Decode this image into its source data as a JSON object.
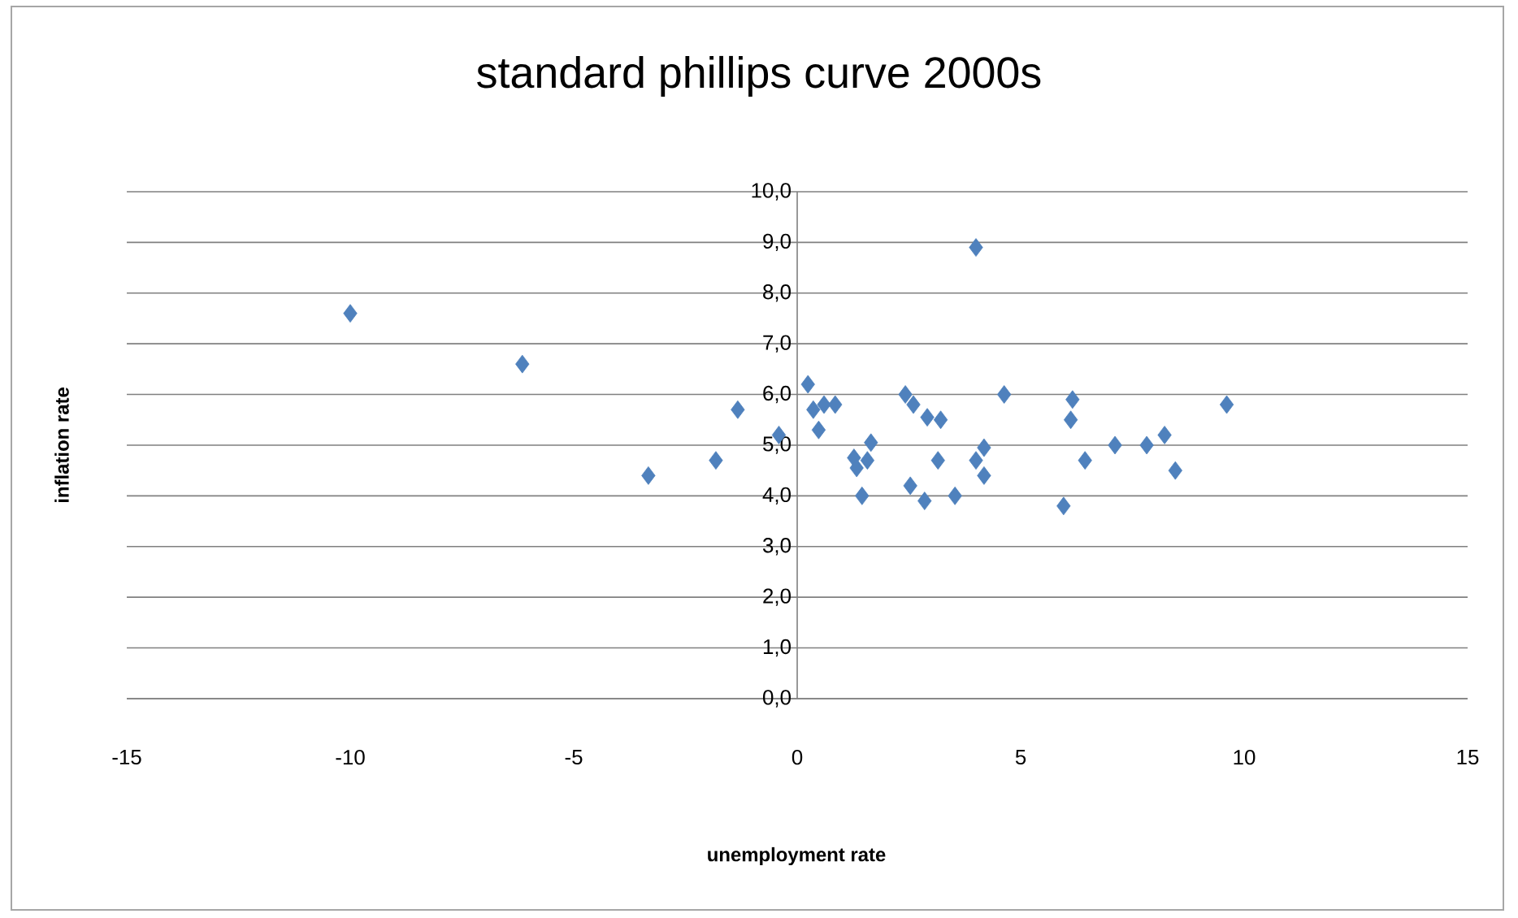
{
  "chart_data": {
    "type": "scatter",
    "title": "standard phillips curve 2000s",
    "xlabel": "unemployment rate",
    "ylabel": "inflation rate",
    "xlim": [
      -15,
      15
    ],
    "xticks": [
      -15,
      -10,
      -5,
      0,
      5,
      10,
      15
    ],
    "ylim": [
      0,
      10
    ],
    "yticks": [
      {
        "value": 0,
        "label": "0,0"
      },
      {
        "value": 1,
        "label": "1,0"
      },
      {
        "value": 2,
        "label": "2,0"
      },
      {
        "value": 3,
        "label": "3,0"
      },
      {
        "value": 4,
        "label": "4,0"
      },
      {
        "value": 5,
        "label": "5,0"
      },
      {
        "value": 6,
        "label": "6,0"
      },
      {
        "value": 7,
        "label": "7,0"
      },
      {
        "value": 8,
        "label": "8,0"
      },
      {
        "value": 9,
        "label": "9,0"
      },
      {
        "value": 10,
        "label": "10,0"
      }
    ],
    "grid": "y",
    "marker": "diamond",
    "series": [
      {
        "color": "#4f81bd",
        "x": [
          -10.0,
          -6.15,
          -3.33,
          -1.82,
          -1.33,
          -0.41,
          0.24,
          0.48,
          0.36,
          0.85,
          0.6,
          1.27,
          1.33,
          1.65,
          1.45,
          1.57,
          2.42,
          2.6,
          2.91,
          3.21,
          2.53,
          2.85,
          3.15,
          3.53,
          4.0,
          4.18,
          4.0,
          4.18,
          4.63,
          6.16,
          6.12,
          5.96,
          6.44,
          7.11,
          7.82,
          8.22,
          8.46,
          9.61
        ],
        "values": [
          7.6,
          6.6,
          4.4,
          4.7,
          5.7,
          5.2,
          6.2,
          5.3,
          5.7,
          5.8,
          5.8,
          4.75,
          4.55,
          5.05,
          4.0,
          4.7,
          6.0,
          5.8,
          5.55,
          5.5,
          4.2,
          3.9,
          4.7,
          4.0,
          8.9,
          4.95,
          4.7,
          4.4,
          6.0,
          5.9,
          5.5,
          3.8,
          4.7,
          5.0,
          5.0,
          5.2,
          4.5,
          5.8
        ]
      }
    ]
  }
}
